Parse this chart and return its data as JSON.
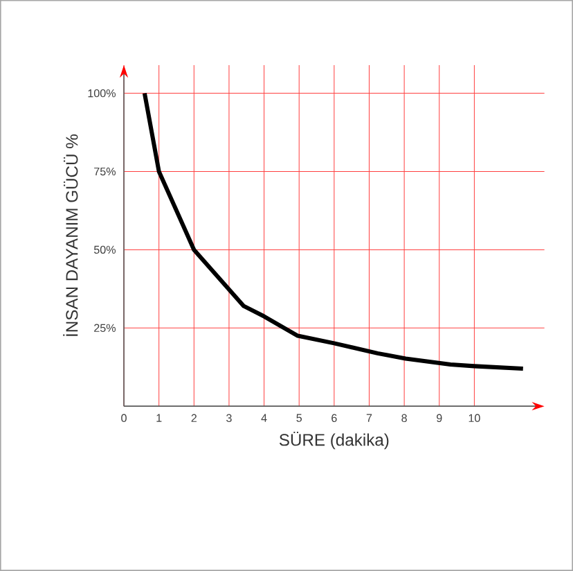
{
  "chart_data": {
    "type": "line",
    "xlabel": "SÜRE (dakika)",
    "ylabel": "İNSAN DAYANIM GÜCÜ %",
    "series": [
      {
        "color": "#000000",
        "x": [
          0.59,
          1.0,
          2.0,
          3.42,
          4.0,
          4.96,
          6.0,
          7.24,
          8.04,
          9.32,
          10.0,
          11.39
        ],
        "values": [
          100,
          75,
          50,
          32,
          28.7,
          22.5,
          20.1,
          16.9,
          15.2,
          13.3,
          12.8,
          12.0
        ]
      }
    ],
    "xlim": [
      0,
      12
    ],
    "ylim": [
      0,
      109
    ],
    "xticks": [
      0,
      1,
      2,
      3,
      4,
      5,
      6,
      7,
      8,
      9,
      10
    ],
    "yticks": [
      {
        "value": 25,
        "label": "25%"
      },
      {
        "value": 50,
        "label": "50%"
      },
      {
        "value": 75,
        "label": "75%"
      },
      {
        "value": 100,
        "label": "100%"
      }
    ],
    "grid": true,
    "marker": "none",
    "line_style": "solid"
  }
}
